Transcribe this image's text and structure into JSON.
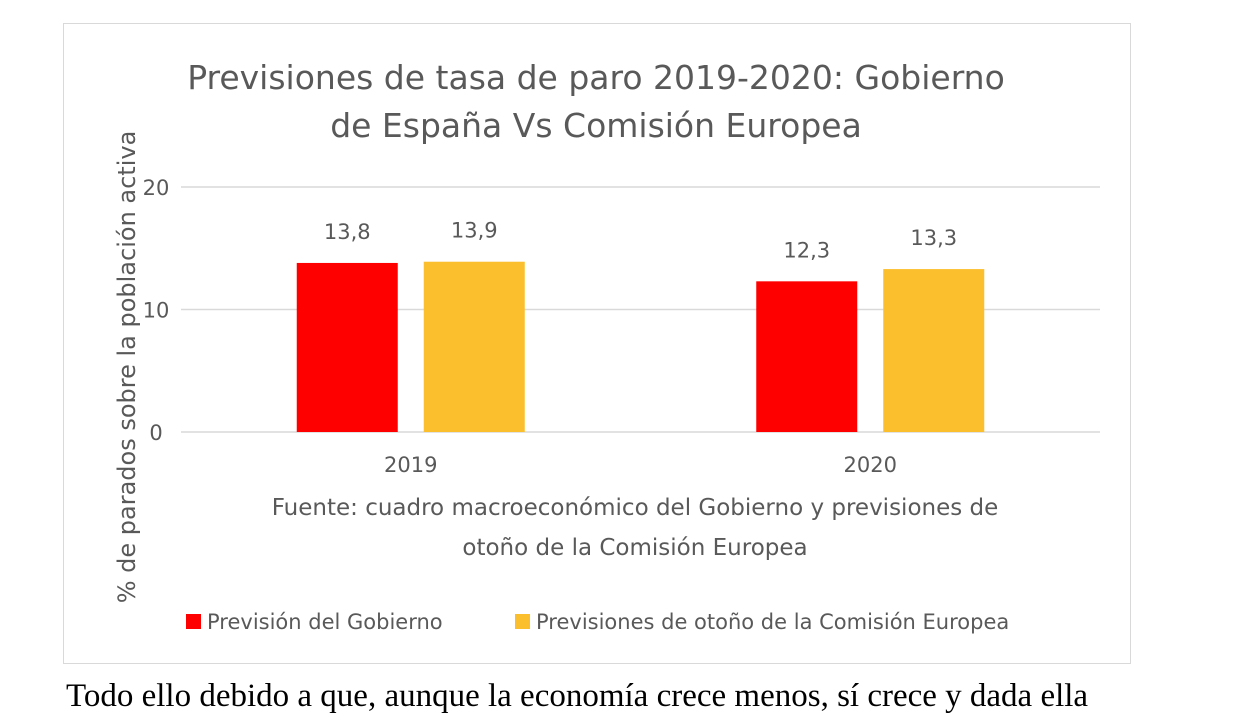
{
  "chart_data": {
    "type": "bar",
    "title_lines": [
      "Previsiones de tasa de paro 2019-2020: Gobierno",
      "de España Vs Comisión Europea"
    ],
    "ylabel": "% de parados sobre la población activa",
    "xlabel": "",
    "ylim": [
      0,
      20
    ],
    "yticks": [
      0,
      10,
      20
    ],
    "grid": true,
    "categories": [
      "2019",
      "2020"
    ],
    "series": [
      {
        "name": "Previsión del Gobierno",
        "color": "#ff0000",
        "values": [
          13.8,
          12.3
        ],
        "labels": [
          "13,8",
          "12,3"
        ]
      },
      {
        "name": "Previsiones de otoño de la Comisión Europea",
        "color": "#fbbf2d",
        "values": [
          13.9,
          13.3
        ],
        "labels": [
          "13,9",
          "13,3"
        ]
      }
    ],
    "source_lines": [
      "Fuente: cuadro macroeconómico del Gobierno y previsiones de",
      "otoño de la Comisión Europea"
    ],
    "legend_position": "bottom"
  },
  "cutoff_text": "Todo ello debido a que, aunque la economía crece menos, sí crece y dada ella"
}
